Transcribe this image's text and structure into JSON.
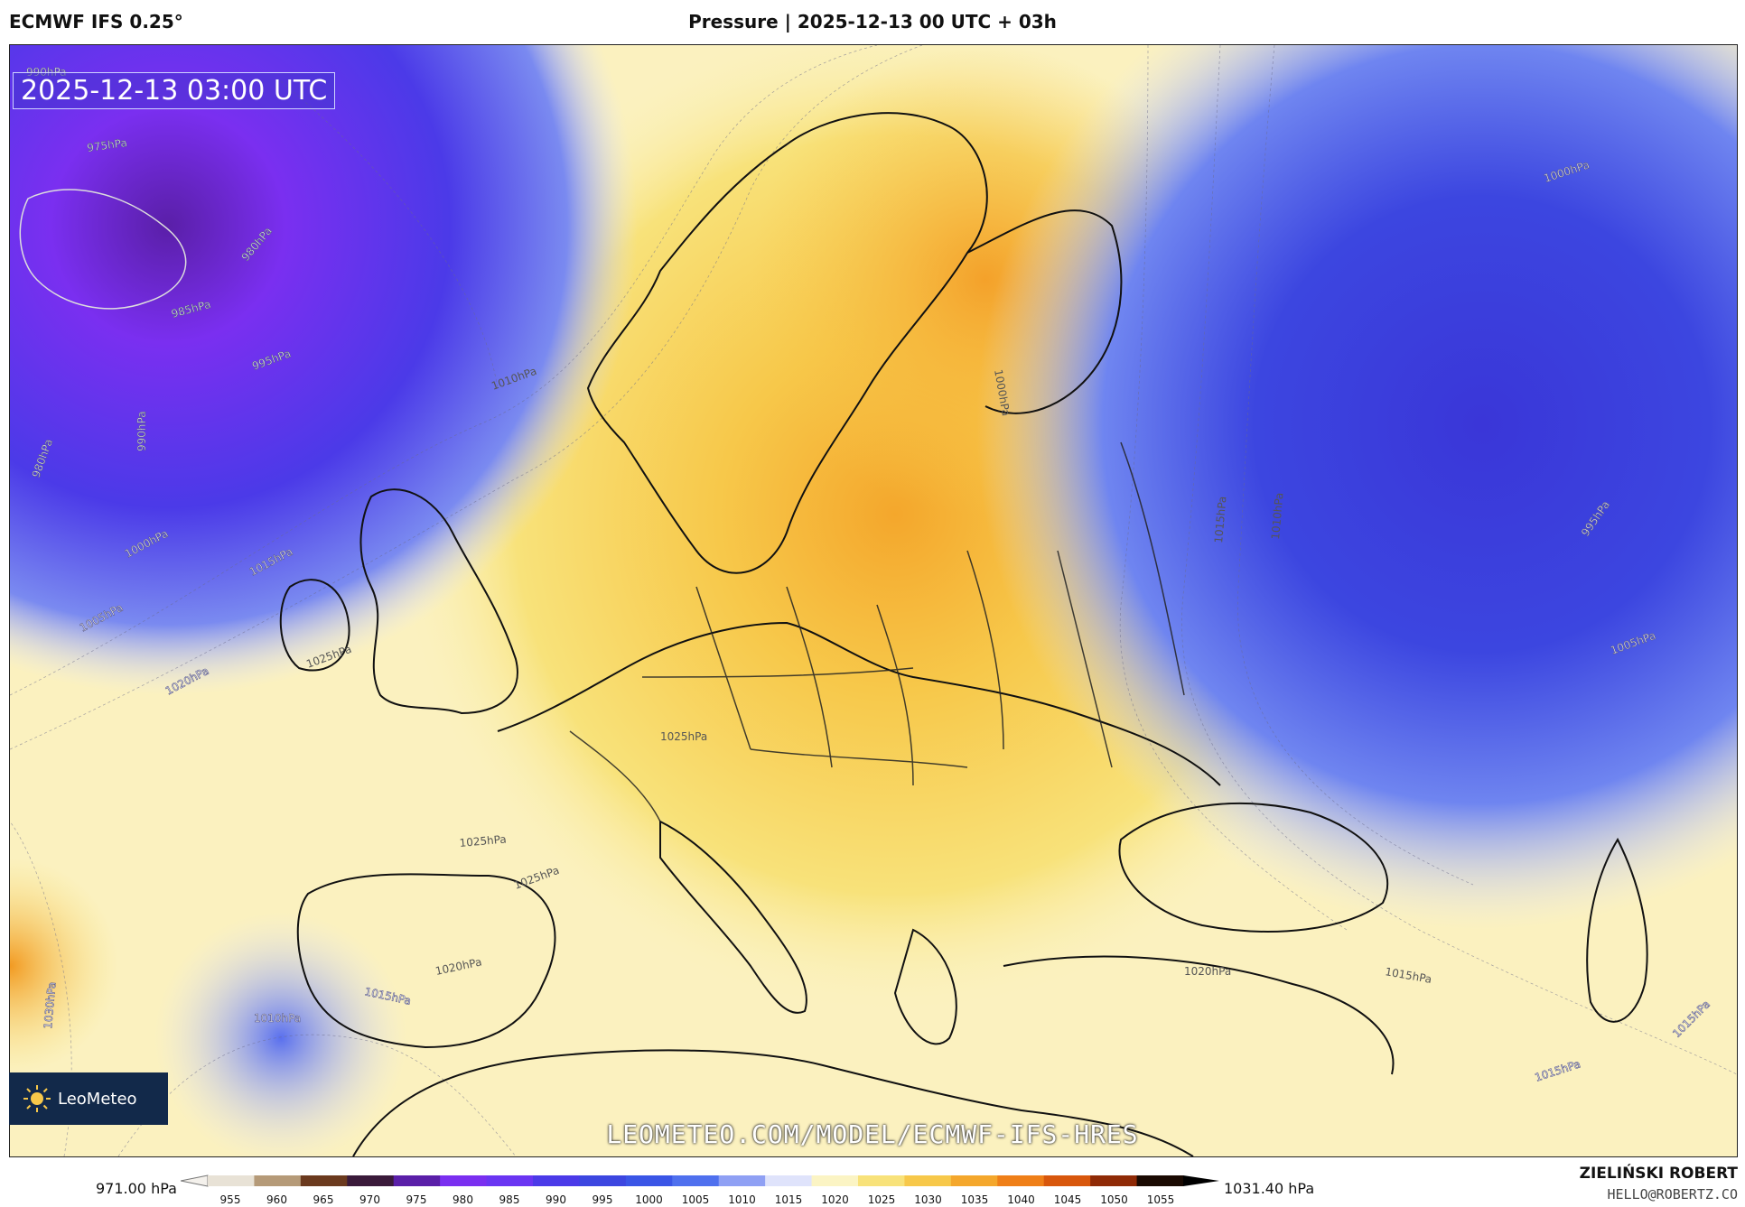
{
  "header": {
    "model": "ECMWF IFS 0.25°",
    "title": "Pressure | 2025-12-13 00 UTC + 03h"
  },
  "map": {
    "timestamp": "2025-12-13 03:00 UTC",
    "watermark": "LEOMETEO.COM/MODEL/ECMWF-IFS-HRES",
    "logo_text": "LeoMeteo",
    "contour_labels": [
      {
        "text": "990hPa"
      },
      {
        "text": "975hPa"
      },
      {
        "text": "980hPa"
      },
      {
        "text": "985hPa"
      },
      {
        "text": "995hPa"
      },
      {
        "text": "990hPa"
      },
      {
        "text": "980hPa"
      },
      {
        "text": "1010hPa"
      },
      {
        "text": "1000hPa"
      },
      {
        "text": "1015hPa"
      },
      {
        "text": "1005hPa"
      },
      {
        "text": "1025hPa"
      },
      {
        "text": "1020hPa"
      },
      {
        "text": "1025hPa"
      },
      {
        "text": "1000hPa"
      },
      {
        "text": "1015hPa"
      },
      {
        "text": "1010hPa"
      },
      {
        "text": "1000hPa"
      },
      {
        "text": "995hPa"
      },
      {
        "text": "1005hPa"
      },
      {
        "text": "1025hPa"
      },
      {
        "text": "1025hPa"
      },
      {
        "text": "1020hPa"
      },
      {
        "text": "1015hPa"
      },
      {
        "text": "1030hPa"
      },
      {
        "text": "1010hPa"
      },
      {
        "text": "1020hPa"
      },
      {
        "text": "1015hPa"
      },
      {
        "text": "1015hPa"
      },
      {
        "text": "1015hPa"
      }
    ]
  },
  "colorbar": {
    "min_label": "971.00 hPa",
    "max_label": "1031.40 hPa",
    "ticks": [
      "955",
      "960",
      "965",
      "970",
      "975",
      "980",
      "985",
      "990",
      "995",
      "1000",
      "1005",
      "1010",
      "1015",
      "1020",
      "1025",
      "1030",
      "1035",
      "1040",
      "1045",
      "1050",
      "1055"
    ],
    "colors": [
      "#e8e2d6",
      "#b59a78",
      "#6b3a1e",
      "#3a1a3a",
      "#5a1fa8",
      "#7a2ff0",
      "#6a35f2",
      "#4b3ae8",
      "#3c46e0",
      "#3a55e6",
      "#4f70ee",
      "#8fa0f4",
      "#dfe3fb",
      "#fbf4c4",
      "#f8e27a",
      "#f7c84a",
      "#f4a72c",
      "#ef7f18",
      "#d8570c",
      "#8f2a06",
      "#1a0a02"
    ]
  },
  "footer": {
    "author": "ZIELIŃSKI ROBERT",
    "email": "HELLO@ROBERTZ.CO"
  }
}
